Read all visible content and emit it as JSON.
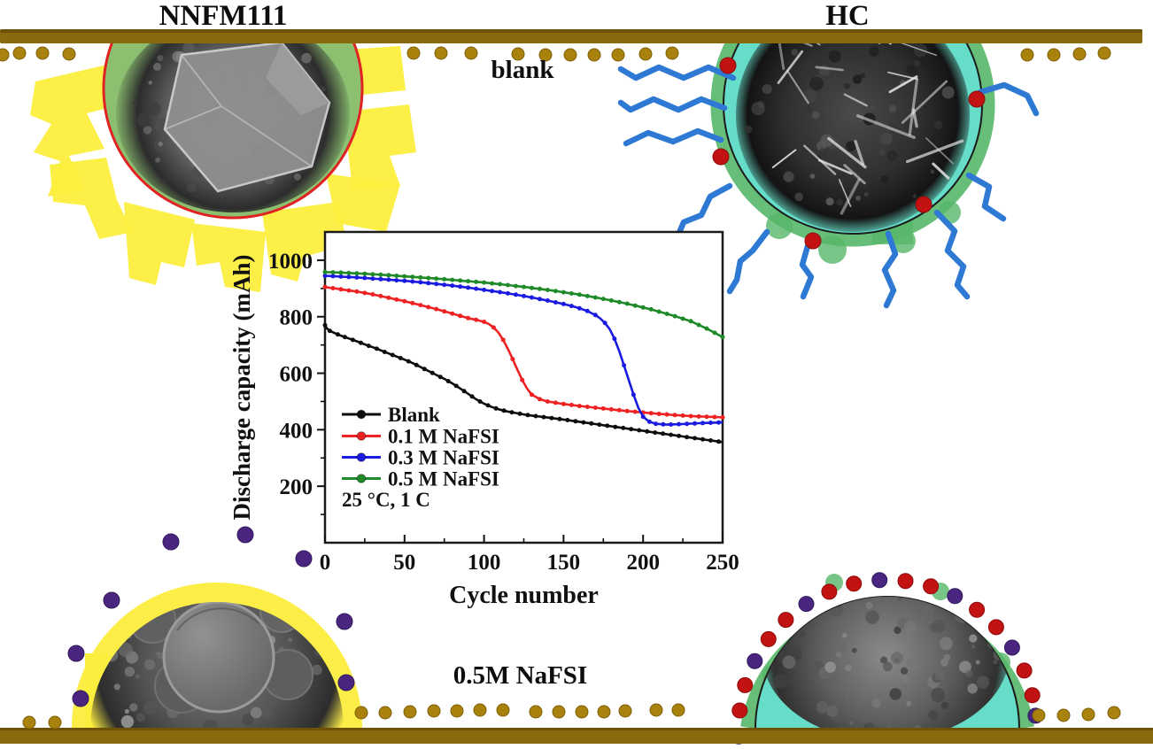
{
  "figure": {
    "labels": {
      "top_left": "NNFM111",
      "top_right": "HC",
      "center_top": "blank",
      "center_bottom": "0.5M NaFSI"
    },
    "colors": {
      "electrode_bar": "#8a6a0c",
      "electrode_bar_edge": "#6e5306",
      "sodium_ion_dot": "#a9820d",
      "yellow_cei": "#fcee3e",
      "nnfm_circle_fill": "#8cc070",
      "nnfm_circle_outline": "#e02222",
      "hc_circle_fill": "#66ddc9",
      "hc_circle_outline": "#1c1c1c",
      "green_sei": "#57b76a",
      "polymer_chain": "#2d79d3",
      "red_species_dot": "#c21212",
      "purple_species_dot": "#4a2580"
    }
  },
  "chart_data": {
    "type": "line",
    "title": "",
    "xlabel": "Cycle number",
    "ylabel": "Discharge capacity (mAh)",
    "xlim": [
      0,
      250
    ],
    "ylim": [
      0,
      1100
    ],
    "xticks": [
      0,
      50,
      100,
      150,
      200,
      250
    ],
    "xticks_minor": [
      25,
      75,
      125,
      175,
      225
    ],
    "yticks": [
      200,
      400,
      600,
      800,
      1000
    ],
    "yticks_minor": [
      100,
      300,
      500,
      700,
      900
    ],
    "grid": false,
    "legend_position": "lower-left",
    "annotation": "25 °C, 1 C",
    "series": [
      {
        "name": "Blank",
        "color": "#0d0d0d",
        "x": [
          0,
          1,
          3,
          6,
          10,
          15,
          20,
          25,
          30,
          35,
          40,
          45,
          50,
          55,
          60,
          65,
          70,
          75,
          80,
          85,
          90,
          95,
          100,
          105,
          110,
          115,
          120,
          125,
          130,
          140,
          150,
          160,
          170,
          180,
          190,
          200,
          210,
          220,
          230,
          240,
          250
        ],
        "y": [
          770,
          760,
          750,
          742,
          733,
          723,
          713,
          702,
          692,
          681,
          670,
          659,
          648,
          636,
          622,
          608,
          594,
          580,
          564,
          546,
          527,
          508,
          492,
          480,
          471,
          464,
          459,
          454,
          450,
          443,
          436,
          428,
          420,
          412,
          404,
          396,
          388,
          380,
          372,
          364,
          356
        ]
      },
      {
        "name": "0.1 M NaFSI",
        "color": "#ee2222",
        "x": [
          0,
          5,
          10,
          15,
          20,
          25,
          30,
          35,
          40,
          45,
          50,
          55,
          60,
          65,
          70,
          75,
          80,
          85,
          90,
          95,
          100,
          103,
          106,
          109,
          112,
          115,
          118,
          121,
          124,
          127,
          130,
          135,
          140,
          150,
          160,
          170,
          180,
          190,
          200,
          210,
          220,
          230,
          240,
          250
        ],
        "y": [
          905,
          901,
          897,
          893,
          889,
          884,
          879,
          873,
          867,
          861,
          855,
          848,
          841,
          834,
          827,
          819,
          811,
          803,
          795,
          789,
          782,
          774,
          762,
          744,
          718,
          686,
          650,
          612,
          576,
          546,
          524,
          508,
          500,
          491,
          484,
          478,
          472,
          466,
          461,
          456,
          452,
          448,
          446,
          444
        ]
      },
      {
        "name": "0.3 M NaFSI",
        "color": "#1a1ae0",
        "x": [
          0,
          10,
          20,
          30,
          40,
          50,
          60,
          70,
          80,
          90,
          100,
          110,
          120,
          130,
          140,
          150,
          155,
          160,
          165,
          170,
          173,
          176,
          179,
          182,
          185,
          188,
          191,
          194,
          197,
          200,
          204,
          208,
          215,
          225,
          235,
          250
        ],
        "y": [
          945,
          942,
          939,
          935,
          931,
          927,
          922,
          916,
          910,
          903,
          895,
          887,
          878,
          868,
          857,
          845,
          838,
          830,
          820,
          806,
          794,
          778,
          756,
          722,
          678,
          628,
          576,
          524,
          478,
          446,
          428,
          421,
          418,
          420,
          423,
          426
        ]
      },
      {
        "name": "0.5 M NaFSI",
        "color": "#1f8a28",
        "x": [
          0,
          10,
          25,
          40,
          55,
          70,
          85,
          100,
          115,
          130,
          145,
          160,
          175,
          190,
          205,
          220,
          230,
          240,
          250
        ],
        "y": [
          958,
          956,
          952,
          947,
          941,
          935,
          928,
          921,
          912,
          902,
          891,
          878,
          863,
          846,
          826,
          802,
          784,
          758,
          728
        ]
      }
    ]
  }
}
